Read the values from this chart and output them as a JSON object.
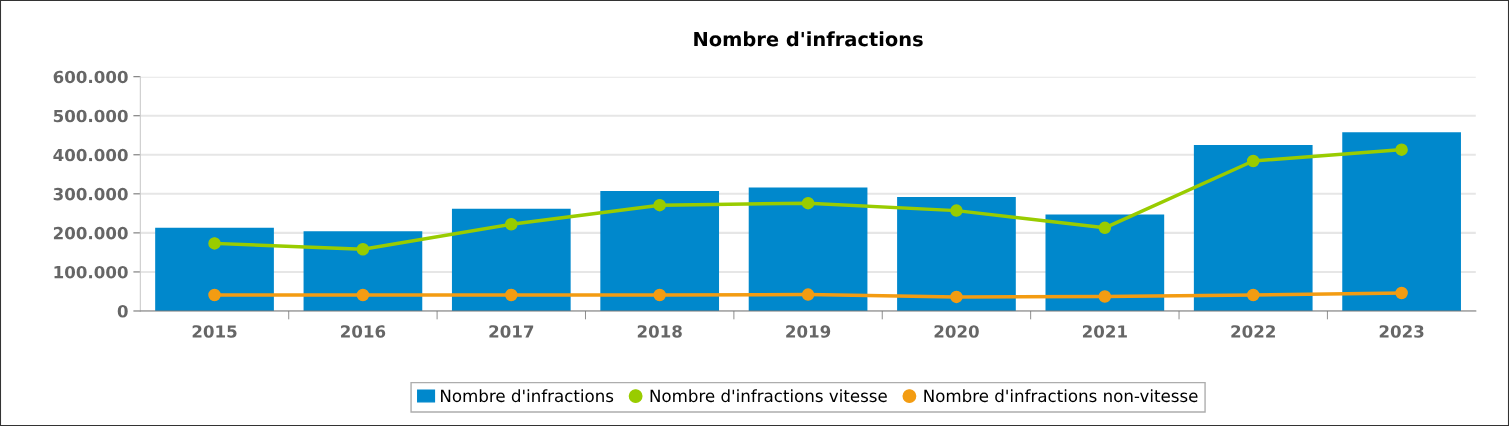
{
  "chart_data": {
    "type": "bar",
    "title": "Nombre d'infractions",
    "categories": [
      "2015",
      "2016",
      "2017",
      "2018",
      "2019",
      "2020",
      "2021",
      "2022",
      "2023"
    ],
    "series": [
      {
        "name": "Nombre d'infractions",
        "color": "#0088cc",
        "values": [
          213000,
          204000,
          262000,
          307000,
          316000,
          292000,
          247000,
          425000,
          458000
        ]
      },
      {
        "name": "Nombre d'infractions vitesse",
        "type": "line",
        "color": "#99cc00",
        "values": [
          173000,
          158000,
          222000,
          271000,
          276000,
          257000,
          213000,
          384000,
          413000
        ]
      },
      {
        "name": "Nombre d'infractions non-vitesse",
        "type": "line",
        "color": "#f39c12",
        "values": [
          41000,
          41000,
          41000,
          41000,
          42000,
          36000,
          37000,
          41000,
          46000
        ]
      }
    ],
    "ylim": [
      0,
      600000
    ],
    "yticks": [
      0,
      {
        "value": 100000,
        "label": "100.000"
      },
      {
        "value": 200000,
        "label": "200.000"
      },
      {
        "value": 300000,
        "label": "300.000"
      },
      {
        "value": 400000,
        "label": "400.000"
      },
      {
        "value": 500000,
        "label": "500.000"
      },
      {
        "value": 600000,
        "label": "600.000"
      }
    ],
    "grid": "y",
    "legend": "bottom",
    "marker": "circle",
    "line_style": "solid"
  }
}
